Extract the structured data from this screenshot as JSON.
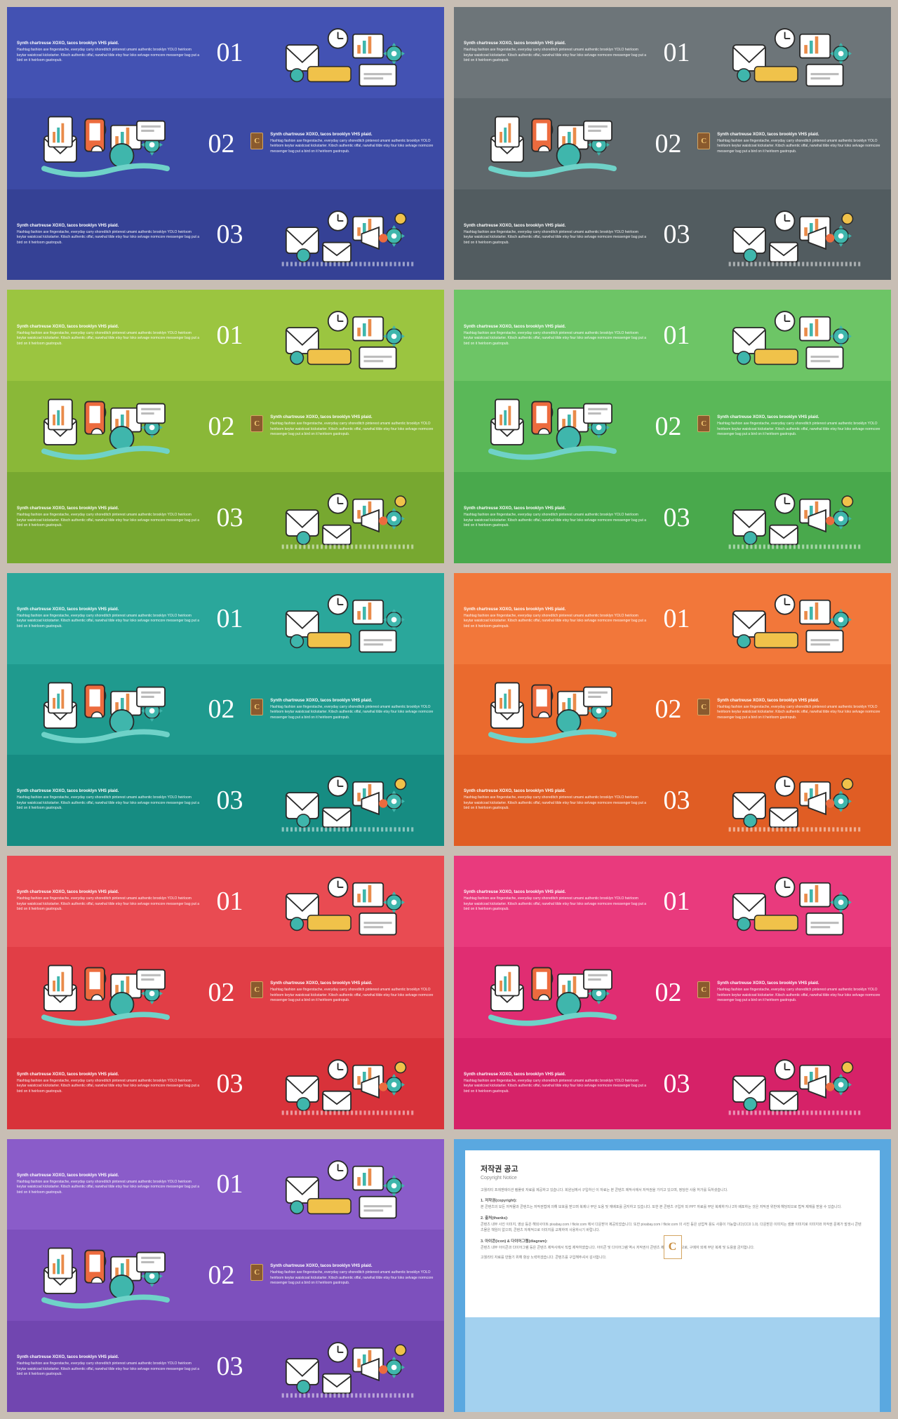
{
  "common": {
    "row_title": "Synth chartreuse XOXO, tacos brooklyn VHS plaid.",
    "row_body": "Hashtag fashion axe fingerstache, everyday carry shoreditch pinterest umami authentic brooklyn YOLO heirloom keytar waistcoat kickstarter. Kitsch authentic offal, narwhal tilde etsy four loko selvage normcore messenger bag put a bird on it heirloom gastropub.",
    "numbers": [
      "01",
      "02",
      "03"
    ],
    "badge_letter": "C",
    "number_fontsize": 38,
    "title_fontsize": 6,
    "body_fontsize": 5,
    "text_color": "#ffffff"
  },
  "slides": [
    {
      "colors": [
        "#4352b3",
        "#3c4aa5",
        "#354195"
      ]
    },
    {
      "colors": [
        "#6d7579",
        "#5f686c",
        "#525c60"
      ]
    },
    {
      "colors": [
        "#9bc540",
        "#8ab838",
        "#77a830"
      ]
    },
    {
      "colors": [
        "#6dc566",
        "#5ab858",
        "#49a94c"
      ]
    },
    {
      "colors": [
        "#2aa79b",
        "#1f9a8e",
        "#168c82"
      ]
    },
    {
      "colors": [
        "#f2773a",
        "#ea6a2e",
        "#e05d24"
      ]
    },
    {
      "colors": [
        "#e94b52",
        "#e13e46",
        "#d8323a"
      ]
    },
    {
      "colors": [
        "#e93a7d",
        "#e02d72",
        "#d62268"
      ]
    },
    {
      "colors": [
        "#8a5cc9",
        "#7d50bd",
        "#7146b0"
      ]
    }
  ],
  "copyright": {
    "bg_outer": "#5aa8e0",
    "bg_lower": "#a3d1ef",
    "panel_bg": "#ffffff",
    "title": "저작권 공고",
    "subtitle": "Copyright Notice",
    "intro": "고퀄리티 프레젠테이션 템플릿 자료를 제공하고 있습니다. 회원님께서 구입하신 이 자료는 본 콘텐츠 제작사에서 저작권을 가지고 있으며, 정당한 사용 허가를 득하셨습니다.",
    "sections": [
      {
        "heading": "1. 저작권(copyright):",
        "text": "본 콘텐츠의 모든 저작물과 콘텐츠는 저작권법에 의해 보호를 받으며 복제나 무단 도용 및 재배포를 금지하고 있습니다. 또한 본 콘텐츠 구입자 외 PPT 자료를 무단 복제하거나 2차 배포하는 것은 저작권 위반에 해당되므로 법적 제재를 받을 수 있습니다."
      },
      {
        "heading": "2. 출처(thanks):",
        "text": "콘텐츠 내부 사진 이미지, 영상 등은 해외사이트 pixabay.com / flickr.com 에서 다운받아 제공되었습니다. 또한 pixabay.com / flickr.com 의 사진 등은 상업적 용도 사용이 가능합니다(CC0 1.0). 다운받은 이미지는 샘플 이미지로 이미지와 저작권 문제가 발생시 콘텐츠몰은 책임이 없으며, 콘텐츠 자체적으로 이미지를 교체하여 사용하시기 바랍니다."
      },
      {
        "heading": "3. 아이콘(icon) & 다이어그램(diagram):",
        "text": "콘텐츠 내부 아이콘과 다이어그램 등은 콘텐츠 제작사에서 직접 제작하였습니다. 아이콘 및 다이어그램 역시 저작권이 콘텐츠 제작사에 있으므로, 구매자 외에 무단 복제 및 도용을 금지합니다."
      }
    ],
    "footer": "고퀄리티 자료를 만들기 위해 항상 노력하겠습니다. 콘텐츠를 구입해주셔서 감사합니다."
  }
}
